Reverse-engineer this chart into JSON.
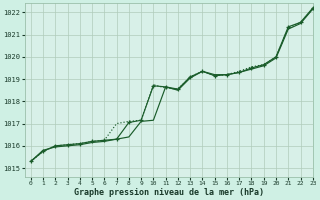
{
  "title": "Graphe pression niveau de la mer (hPa)",
  "background_color": "#cff0e4",
  "plot_bg_color": "#d8f0e8",
  "grid_color": "#b0ccbb",
  "line_color": "#1a5c2a",
  "xlim": [
    -0.5,
    23
  ],
  "ylim": [
    1014.6,
    1022.4
  ],
  "yticks": [
    1015,
    1016,
    1017,
    1018,
    1019,
    1020,
    1021,
    1022
  ],
  "xticks": [
    0,
    1,
    2,
    3,
    4,
    5,
    6,
    7,
    8,
    9,
    10,
    11,
    12,
    13,
    14,
    15,
    16,
    17,
    18,
    19,
    20,
    21,
    22,
    23
  ],
  "series1": [
    1015.3,
    1015.8,
    1015.95,
    1016.0,
    1016.05,
    1016.15,
    1016.2,
    1016.3,
    1016.4,
    1017.1,
    1017.15,
    1018.65,
    1018.5,
    1019.05,
    1019.35,
    1019.2,
    1019.2,
    1019.3,
    1019.45,
    1019.6,
    1019.95,
    1021.25,
    1021.5,
    1022.15
  ],
  "series2_x": [
    0,
    1,
    2,
    3,
    4,
    5,
    6,
    7,
    8,
    9,
    10,
    11,
    12,
    13,
    14,
    15,
    16,
    17,
    18,
    19,
    20,
    21,
    22,
    23
  ],
  "series2": [
    1015.3,
    1015.75,
    1016.0,
    1016.05,
    1016.1,
    1016.2,
    1016.25,
    1016.3,
    1017.05,
    1017.15,
    1018.7,
    1018.65,
    1018.55,
    1019.1,
    1019.35,
    1019.15,
    1019.2,
    1019.3,
    1019.5,
    1019.65,
    1020.0,
    1021.35,
    1021.55,
    1022.2
  ],
  "series3": [
    1015.3,
    1015.75,
    1016.0,
    1016.05,
    1016.1,
    1016.2,
    1016.25,
    1017.0,
    1017.1,
    1017.15,
    1018.75,
    1018.6,
    1018.55,
    1019.1,
    1019.35,
    1019.15,
    1019.2,
    1019.35,
    1019.55,
    1019.65,
    1020.0,
    1021.3,
    1021.55,
    1022.15
  ]
}
